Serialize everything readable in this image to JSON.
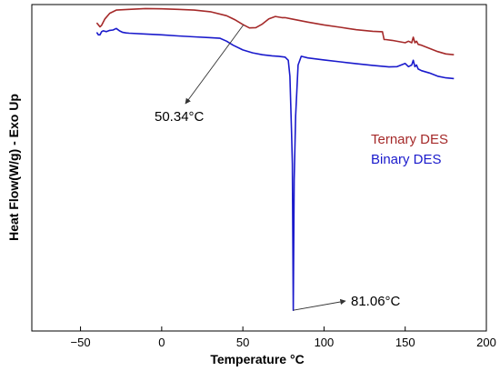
{
  "chart_data": {
    "type": "line",
    "xlabel": "Temperature °C",
    "ylabel": "Heat Flow(W/g) - Exo Up",
    "xlim": [
      -80,
      200
    ],
    "xticks": [
      -50,
      0,
      50,
      100,
      150,
      200
    ],
    "y_tick_labels_shown": false,
    "grid": false,
    "legend_position": "right",
    "legend": [
      {
        "label": "Ternary DES",
        "color": "#a52a2a"
      },
      {
        "label": "Binary DES",
        "color": "#1a1acc"
      }
    ],
    "series": [
      {
        "name": "Ternary DES",
        "color": "#a52a2a",
        "x": [
          -40,
          -38,
          -37,
          -35,
          -32,
          -28,
          -20,
          -10,
          0,
          10,
          20,
          30,
          40,
          45,
          50,
          54,
          58,
          62,
          66,
          70,
          74,
          76,
          80,
          90,
          100,
          110,
          120,
          130,
          136,
          137,
          138,
          142,
          150,
          152,
          154,
          155,
          156,
          157,
          158,
          160,
          165,
          170,
          175,
          180
        ],
        "y": [
          0.885,
          0.86,
          0.87,
          0.91,
          0.945,
          0.965,
          0.97,
          0.975,
          0.973,
          0.97,
          0.965,
          0.955,
          0.93,
          0.905,
          0.875,
          0.853,
          0.855,
          0.878,
          0.91,
          0.925,
          0.918,
          0.918,
          0.91,
          0.89,
          0.872,
          0.857,
          0.842,
          0.832,
          0.829,
          0.78,
          0.78,
          0.775,
          0.76,
          0.77,
          0.76,
          0.795,
          0.76,
          0.77,
          0.75,
          0.745,
          0.725,
          0.705,
          0.69,
          0.685
        ]
      },
      {
        "name": "Binary DES",
        "color": "#1a1acc",
        "x": [
          -40,
          -39,
          -38,
          -37,
          -36,
          -34,
          -32,
          -30,
          -28,
          -26,
          -24,
          -22,
          -20,
          -10,
          0,
          10,
          20,
          30,
          36,
          40,
          44,
          50,
          56,
          62,
          68,
          72,
          76,
          78,
          79,
          80,
          80.5,
          81.06,
          81.6,
          82.5,
          84,
          86,
          90,
          100,
          110,
          120,
          130,
          140,
          145,
          150,
          152,
          154,
          155,
          156,
          157,
          158,
          160,
          165,
          170,
          175,
          180
        ],
        "y": [
          0.825,
          0.81,
          0.81,
          0.83,
          0.835,
          0.83,
          0.838,
          0.84,
          0.85,
          0.835,
          0.825,
          0.822,
          0.82,
          0.815,
          0.81,
          0.803,
          0.797,
          0.792,
          0.788,
          0.77,
          0.745,
          0.715,
          0.697,
          0.685,
          0.678,
          0.675,
          0.67,
          0.65,
          0.55,
          0.2,
          0.0,
          -0.92,
          -0.1,
          0.3,
          0.62,
          0.675,
          0.665,
          0.652,
          0.64,
          0.628,
          0.618,
          0.608,
          0.61,
          0.63,
          0.61,
          0.62,
          0.65,
          0.61,
          0.62,
          0.595,
          0.585,
          0.57,
          0.55,
          0.54,
          0.535
        ]
      }
    ],
    "annotations": [
      {
        "text": "50.34°C",
        "target_x": 50.34,
        "target_y": 0.872,
        "arrow_to": "label"
      },
      {
        "text": "81.06°C",
        "target_x": 81.06,
        "target_y": -0.92,
        "arrow_to": "label"
      }
    ]
  }
}
